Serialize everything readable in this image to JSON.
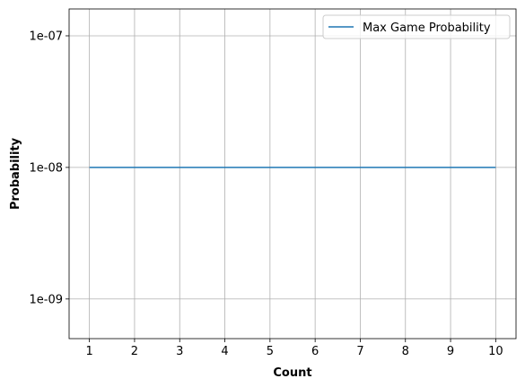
{
  "chart_data": {
    "type": "line",
    "title": "",
    "xlabel": "Count",
    "ylabel": "Probability",
    "x": [
      1,
      2,
      3,
      4,
      5,
      6,
      7,
      8,
      9,
      10
    ],
    "xlim": [
      0.55,
      10.45
    ],
    "yscale": "log",
    "ylim": [
      5e-10,
      1.6e-07
    ],
    "xticks": [
      {
        "value": 1,
        "label": "1"
      },
      {
        "value": 2,
        "label": "2"
      },
      {
        "value": 3,
        "label": "3"
      },
      {
        "value": 4,
        "label": "4"
      },
      {
        "value": 5,
        "label": "5"
      },
      {
        "value": 6,
        "label": "6"
      },
      {
        "value": 7,
        "label": "7"
      },
      {
        "value": 8,
        "label": "8"
      },
      {
        "value": 9,
        "label": "9"
      },
      {
        "value": 10,
        "label": "10"
      }
    ],
    "yticks": [
      {
        "value": 1e-09,
        "label": "1e-09"
      },
      {
        "value": 1e-08,
        "label": "1e-08"
      },
      {
        "value": 1e-07,
        "label": "1e-07"
      }
    ],
    "grid": true,
    "legend_position": "top-right",
    "series": [
      {
        "name": "Max Game Probability",
        "color": "#1f77b4",
        "values": [
          1e-08,
          1e-08,
          1e-08,
          1e-08,
          1e-08,
          1e-08,
          1e-08,
          1e-08,
          1e-08,
          1e-08
        ]
      }
    ]
  }
}
